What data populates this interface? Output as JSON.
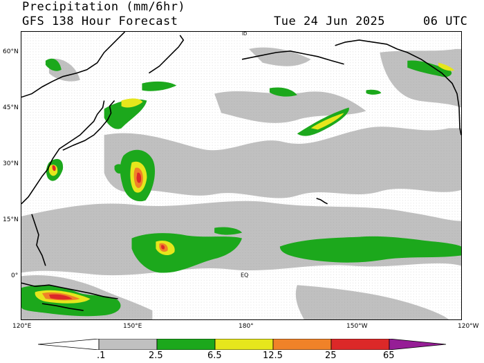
{
  "header": {
    "title": "Precipitation (mm/6hr)",
    "subtitle": "GFS 138 Hour Forecast",
    "datetime": "Tue 24 Jun 2025",
    "cycle": "06 UTC"
  },
  "map": {
    "region": "North Pacific",
    "lat_labels": [
      "60°N",
      "45°N",
      "30°N",
      "15°N",
      "0°"
    ],
    "lon_labels": [
      "120°E",
      "150°E",
      "180°",
      "150°W",
      "120°W"
    ],
    "inline_labels": [
      "EQ",
      "ID"
    ],
    "colors": {
      "land_outline": "#000000",
      "ocean": "#ffffff"
    }
  },
  "colorbar": {
    "labels": [
      ".1",
      "2.5",
      "6.5",
      "12.5",
      "25",
      "65"
    ],
    "colors": [
      "#ffffff",
      "#c0c0c0",
      "#1ca81c",
      "#e6e61c",
      "#f08228",
      "#dc2828",
      "#961e96"
    ]
  }
}
